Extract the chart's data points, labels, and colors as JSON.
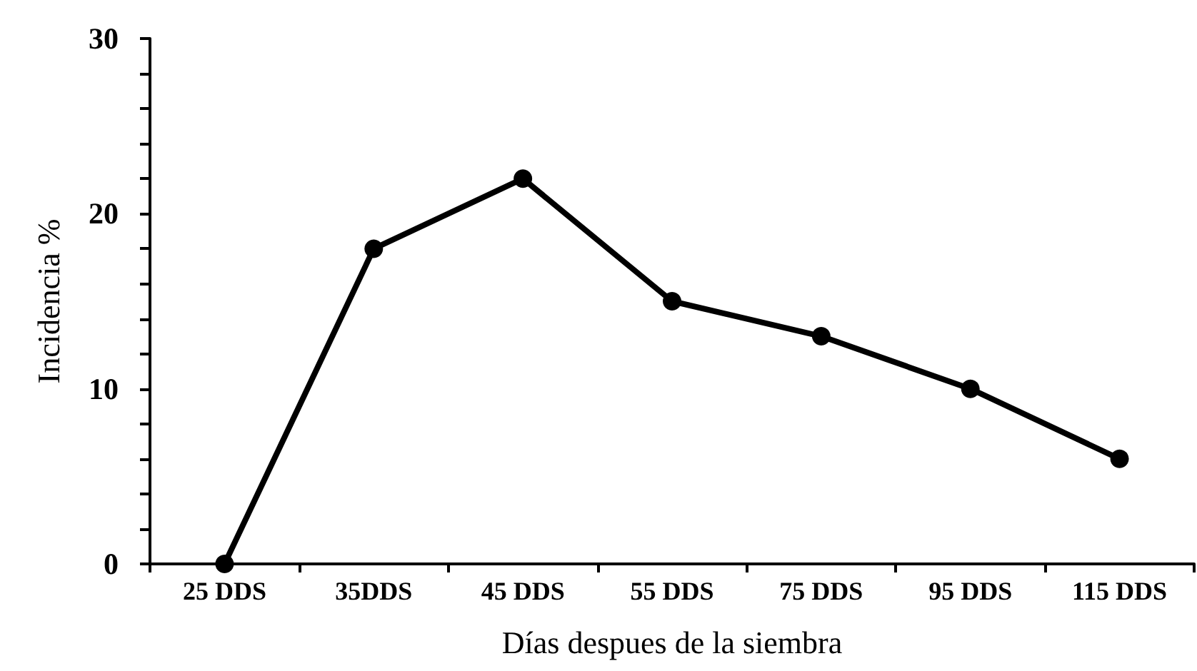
{
  "chart_data": {
    "type": "line",
    "xlabel": "Días despues de la siembra",
    "ylabel": "Incidencia %",
    "categories": [
      "25 DDS",
      "35DDS",
      "45 DDS",
      "55 DDS",
      "75 DDS",
      "95 DDS",
      "115 DDS"
    ],
    "series": [
      {
        "color": "#000000",
        "values": [
          0,
          18,
          22,
          15,
          13,
          10,
          6
        ]
      }
    ],
    "ylim": [
      0,
      30
    ],
    "yticks": [
      0,
      {
        "value": 2,
        "label": null
      },
      {
        "value": 4,
        "label": null
      },
      {
        "value": 6,
        "label": null
      },
      {
        "value": 8,
        "label": null
      },
      10,
      {
        "value": 12,
        "label": null
      },
      {
        "value": 14,
        "label": null
      },
      {
        "value": 16,
        "label": null
      },
      {
        "value": 18,
        "label": null
      },
      20,
      {
        "value": 22,
        "label": null
      },
      {
        "value": 24,
        "label": null
      },
      {
        "value": 26,
        "label": null
      },
      {
        "value": 28,
        "label": null
      },
      30
    ],
    "grid": false,
    "marker": "circle",
    "line_style": "solid"
  }
}
